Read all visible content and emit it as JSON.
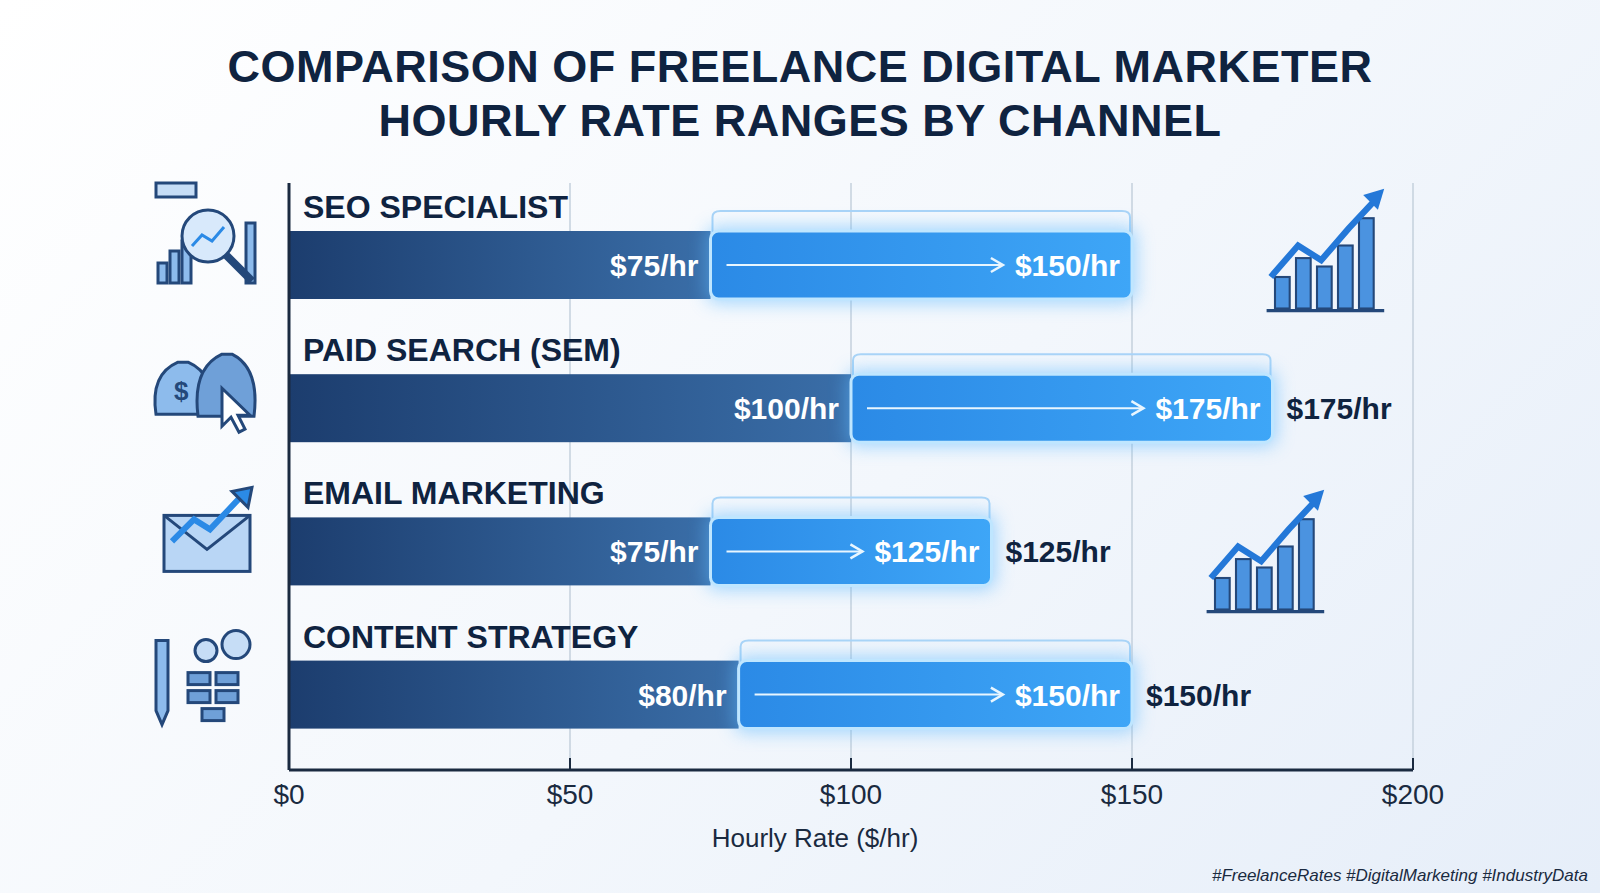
{
  "chart_data": {
    "type": "range",
    "title": "COMPARISON OF FREELANCE DIGITAL MARKETER HOURLY RATE RANGES BY CHANNEL",
    "orientation": "horizontal",
    "categories": [
      "SEO SPECIALIST",
      "PAID SEARCH (SEM)",
      "EMAIL MARKETING",
      "CONTENT STRATEGY"
    ],
    "series": [
      {
        "color": "#1c3d6e",
        "values": [
          75,
          100,
          75,
          80
        ],
        "value_labels": [
          "$75/hr",
          "$100/hr",
          "$75/hr",
          "$80/hr"
        ]
      },
      {
        "color": "#2b8ae6",
        "values": [
          150,
          175,
          125,
          150
        ],
        "value_labels": [
          "$150/hr",
          "$175/hr",
          "$125/hr",
          "$150/hr"
        ]
      }
    ],
    "data_labels": true,
    "annotations": [
      {
        "category": "PAID SEARCH (SEM)",
        "value": 175,
        "text": "$175/hr"
      },
      {
        "category": "EMAIL MARKETING",
        "value": 125,
        "text": "$125/hr"
      },
      {
        "category": "CONTENT STRATEGY",
        "value": 150,
        "text": "$150/hr"
      }
    ],
    "x_label": "Hourly Rate ($/hr)",
    "xlim": [
      0,
      200
    ],
    "xticks": [
      {
        "value": 0,
        "label": "$0"
      },
      {
        "value": 50,
        "label": "$50"
      },
      {
        "value": 100,
        "label": "$100"
      },
      {
        "value": 150,
        "label": "$150"
      },
      {
        "value": 200,
        "label": "$200"
      }
    ],
    "grid": true,
    "footer": "#FreelanceRates #DigitalMarketing #IndustryData"
  }
}
